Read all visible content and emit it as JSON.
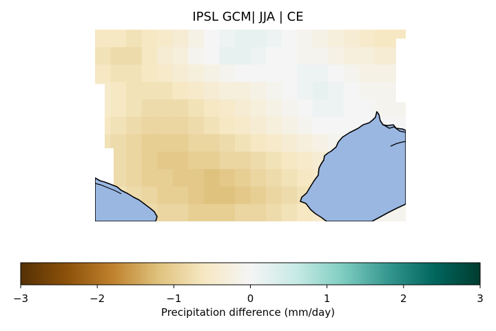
{
  "title": "IPSL GCM| JJA | CE",
  "colorbar": {
    "label": "Precipitation difference (mm/day)",
    "min": -3,
    "max": 3,
    "ticks": [
      {
        "value": -3,
        "label": "−3"
      },
      {
        "value": -2,
        "label": "−2"
      },
      {
        "value": -1,
        "label": "−1"
      },
      {
        "value": 0,
        "label": "0"
      },
      {
        "value": 1,
        "label": "1"
      },
      {
        "value": 2,
        "label": "2"
      },
      {
        "value": 3,
        "label": "3"
      }
    ],
    "colormap": "BrBG",
    "stops": [
      "#543005",
      "#8c510a",
      "#bf812d",
      "#dfc27d",
      "#f6e8c3",
      "#f5f5f5",
      "#c7eae5",
      "#80cdc1",
      "#35978f",
      "#01665e",
      "#003c30"
    ]
  },
  "map": {
    "ocean_color": "#9ab7e2",
    "coast_color": "#000000",
    "field": [
      [
        -0.6,
        -0.6,
        -0.7,
        -0.6,
        -0.5,
        -0.4,
        -0.2,
        0.0,
        0.1,
        0.2,
        0.2,
        0.1,
        0.0,
        -0.1,
        -0.2,
        -0.3,
        -0.4,
        -0.5,
        -0.6,
        -0.6
      ],
      [
        -0.7,
        -0.8,
        -0.8,
        -0.6,
        -0.4,
        -0.3,
        -0.1,
        0.0,
        0.2,
        0.2,
        0.1,
        0.0,
        0.0,
        -0.1,
        -0.1,
        -0.2,
        -0.3,
        -0.3,
        -0.4,
        -0.4
      ],
      [
        -0.6,
        -0.7,
        -0.7,
        -0.6,
        -0.5,
        -0.4,
        -0.3,
        -0.2,
        -0.1,
        0.0,
        0.0,
        0.0,
        0.0,
        0.1,
        0.1,
        0.0,
        -0.1,
        -0.2,
        -0.2,
        -0.2
      ],
      [
        -0.5,
        -0.6,
        -0.7,
        -0.7,
        -0.7,
        -0.6,
        -0.5,
        -0.4,
        -0.3,
        -0.3,
        -0.2,
        -0.1,
        0.0,
        0.1,
        0.2,
        0.1,
        0.0,
        -0.1,
        -0.1,
        -0.1
      ],
      [
        -0.5,
        -0.6,
        -0.7,
        -0.8,
        -0.8,
        -0.8,
        -0.7,
        -0.6,
        -0.5,
        -0.4,
        -0.3,
        -0.2,
        -0.1,
        0.0,
        0.1,
        0.1,
        0.0,
        0.0,
        -0.1,
        -0.1
      ],
      [
        -0.6,
        -0.7,
        -0.8,
        -0.9,
        -0.9,
        -0.9,
        -0.8,
        -0.7,
        -0.6,
        -0.5,
        -0.4,
        -0.3,
        -0.2,
        -0.1,
        0.0,
        0.0,
        0.0,
        0.0,
        0.0,
        0.0
      ],
      [
        -0.7,
        -0.8,
        -0.9,
        -1.0,
        -1.0,
        -1.0,
        -0.9,
        -0.9,
        -0.8,
        -0.7,
        -0.6,
        -0.5,
        -0.4,
        -0.3,
        -0.2,
        -0.1,
        0.0,
        0.0,
        0.0,
        0.0
      ],
      [
        -0.7,
        -0.8,
        -0.9,
        -1.0,
        -1.1,
        -1.1,
        -1.0,
        -1.0,
        -0.9,
        -0.9,
        -0.8,
        -0.7,
        -0.6,
        -0.5,
        -0.4,
        -0.3,
        -0.2,
        -0.1,
        0.0,
        0.0
      ],
      [
        -0.7,
        -0.8,
        -0.9,
        -1.0,
        -1.0,
        -1.1,
        -1.1,
        -1.2,
        -1.1,
        -1.0,
        -0.9,
        -0.8,
        -0.7,
        -0.6,
        -0.5,
        -0.4,
        -0.3,
        -0.2,
        -0.1,
        0.0
      ],
      [
        -0.6,
        -0.7,
        -0.8,
        -0.9,
        -1.0,
        -1.0,
        -1.1,
        -1.2,
        -1.2,
        -1.1,
        -1.0,
        -0.9,
        -0.8,
        -0.7,
        -0.6,
        -0.5,
        -0.4,
        -0.3,
        -0.2,
        -0.1
      ],
      [
        -0.5,
        -0.6,
        -0.7,
        -0.8,
        -0.9,
        -0.9,
        -1.0,
        -1.0,
        -1.0,
        -0.9,
        -0.9,
        -0.8,
        -0.7,
        -0.6,
        -0.5,
        -0.4,
        -0.3,
        -0.2,
        -0.1,
        -0.1
      ]
    ],
    "land_mask": [
      "..................00",
      "...................0",
      ".......................",
      "0...................0",
      "0...................0",
      "0...................0",
      "00.................00",
      "00.................00",
      "00.................00",
      "00.................00",
      "00.................00"
    ]
  }
}
